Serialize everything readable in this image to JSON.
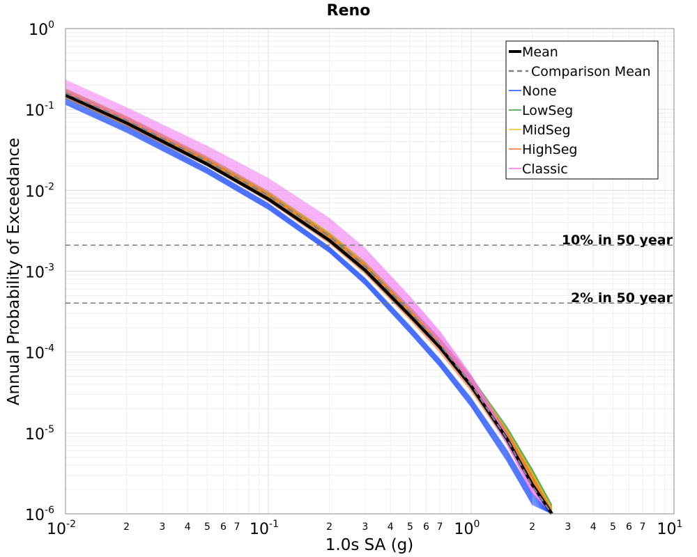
{
  "chart_data": {
    "type": "line",
    "title": "Reno",
    "xlabel": "1.0s SA (g)",
    "ylabel": "Annual Probability of Exceedance",
    "x_scale": "log",
    "y_scale": "log",
    "xlim": [
      0.01,
      10
    ],
    "ylim": [
      1e-06,
      1
    ],
    "grid": true,
    "legend_position": "top-right",
    "x_major_ticks": [
      {
        "base": "10",
        "exp": "-2"
      },
      {
        "base": "10",
        "exp": "-1"
      },
      {
        "base": "10",
        "exp": "0"
      },
      {
        "base": "10",
        "exp": "1"
      }
    ],
    "y_major_ticks": [
      {
        "base": "10",
        "exp": "0"
      },
      {
        "base": "10",
        "exp": "-1"
      },
      {
        "base": "10",
        "exp": "-2"
      },
      {
        "base": "10",
        "exp": "-3"
      },
      {
        "base": "10",
        "exp": "-4"
      },
      {
        "base": "10",
        "exp": "-5"
      },
      {
        "base": "10",
        "exp": "-6"
      }
    ],
    "x_minor_labels": [
      "2",
      "3",
      "4",
      "5",
      "6",
      "7"
    ],
    "reference_lines": [
      {
        "label": "10% in 50 year",
        "y": 0.0021
      },
      {
        "label": "2% in 50 year",
        "y": 0.000404
      }
    ],
    "x": [
      0.01,
      0.02,
      0.05,
      0.1,
      0.2,
      0.3,
      0.5,
      0.7,
      1.0,
      1.5,
      2.0,
      2.5
    ],
    "series": [
      {
        "name": "Mean",
        "color": "#000000",
        "style": "solid-thick",
        "values": [
          0.15,
          0.068,
          0.021,
          0.0078,
          0.0024,
          0.00103,
          0.00028,
          0.000115,
          3.8e-05,
          8.5e-06,
          2.3e-06,
          8e-07
        ]
      },
      {
        "name": "Comparison Mean",
        "color": "#808080",
        "style": "dashed",
        "values": [
          0.16,
          0.073,
          0.023,
          0.0086,
          0.0027,
          0.00115,
          0.00031,
          0.000125,
          4e-05,
          8.5e-06,
          2.2e-06,
          7.5e-07
        ]
      },
      {
        "name": "None",
        "color": "#1f4fff",
        "style": "thin",
        "band_low": [
          0.115,
          0.052,
          0.016,
          0.0058,
          0.0017,
          0.00068,
          0.00017,
          6.6e-05,
          2.1e-05,
          4.5e-06,
          1.3e-06,
          5e-07
        ],
        "band_high": [
          0.14,
          0.063,
          0.019,
          0.0069,
          0.002,
          0.00082,
          0.00021,
          8.2e-05,
          2.7e-05,
          6.2e-06,
          1.8e-06,
          7e-07
        ]
      },
      {
        "name": "LowSeg",
        "color": "#3a9a3a",
        "style": "thin",
        "band_low": [
          0.14,
          0.063,
          0.02,
          0.0074,
          0.0023,
          0.00098,
          0.00027,
          0.000112,
          3.8e-05,
          9.2e-06,
          2.8e-06,
          1e-06
        ],
        "band_high": [
          0.18,
          0.082,
          0.026,
          0.0097,
          0.003,
          0.0013,
          0.00036,
          0.000148,
          5e-05,
          1.2e-05,
          3.6e-06,
          1.3e-06
        ]
      },
      {
        "name": "MidSeg",
        "color": "#e8c020",
        "style": "thin",
        "band_low": [
          0.14,
          0.064,
          0.02,
          0.0075,
          0.0023,
          0.00098,
          0.00027,
          0.00011,
          3.7e-05,
          8.5e-06,
          2.5e-06,
          9e-07
        ],
        "band_high": [
          0.18,
          0.082,
          0.026,
          0.0096,
          0.003,
          0.0013,
          0.00035,
          0.000145,
          4.8e-05,
          1.1e-05,
          3.3e-06,
          1.2e-06
        ]
      },
      {
        "name": "HighSeg",
        "color": "#f07030",
        "style": "thin",
        "band_low": [
          0.14,
          0.063,
          0.02,
          0.0073,
          0.0022,
          0.00093,
          0.00025,
          0.0001,
          3.3e-05,
          7.5e-06,
          2.1e-06,
          8e-07
        ],
        "band_high": [
          0.175,
          0.08,
          0.025,
          0.0093,
          0.0029,
          0.00124,
          0.00034,
          0.00014,
          4.6e-05,
          1.05e-05,
          3e-06,
          1.1e-06
        ]
      },
      {
        "name": "Classic",
        "color": "#f070f0",
        "style": "thin",
        "band_low": [
          0.16,
          0.075,
          0.025,
          0.0096,
          0.0031,
          0.0013,
          0.00034,
          0.00013,
          3.8e-05,
          7.2e-06,
          1.8e-06,
          6e-07
        ],
        "band_high": [
          0.23,
          0.105,
          0.035,
          0.014,
          0.0045,
          0.0019,
          0.00048,
          0.00018,
          5.2e-05,
          9.5e-06,
          2.4e-06,
          8e-07
        ]
      }
    ]
  }
}
